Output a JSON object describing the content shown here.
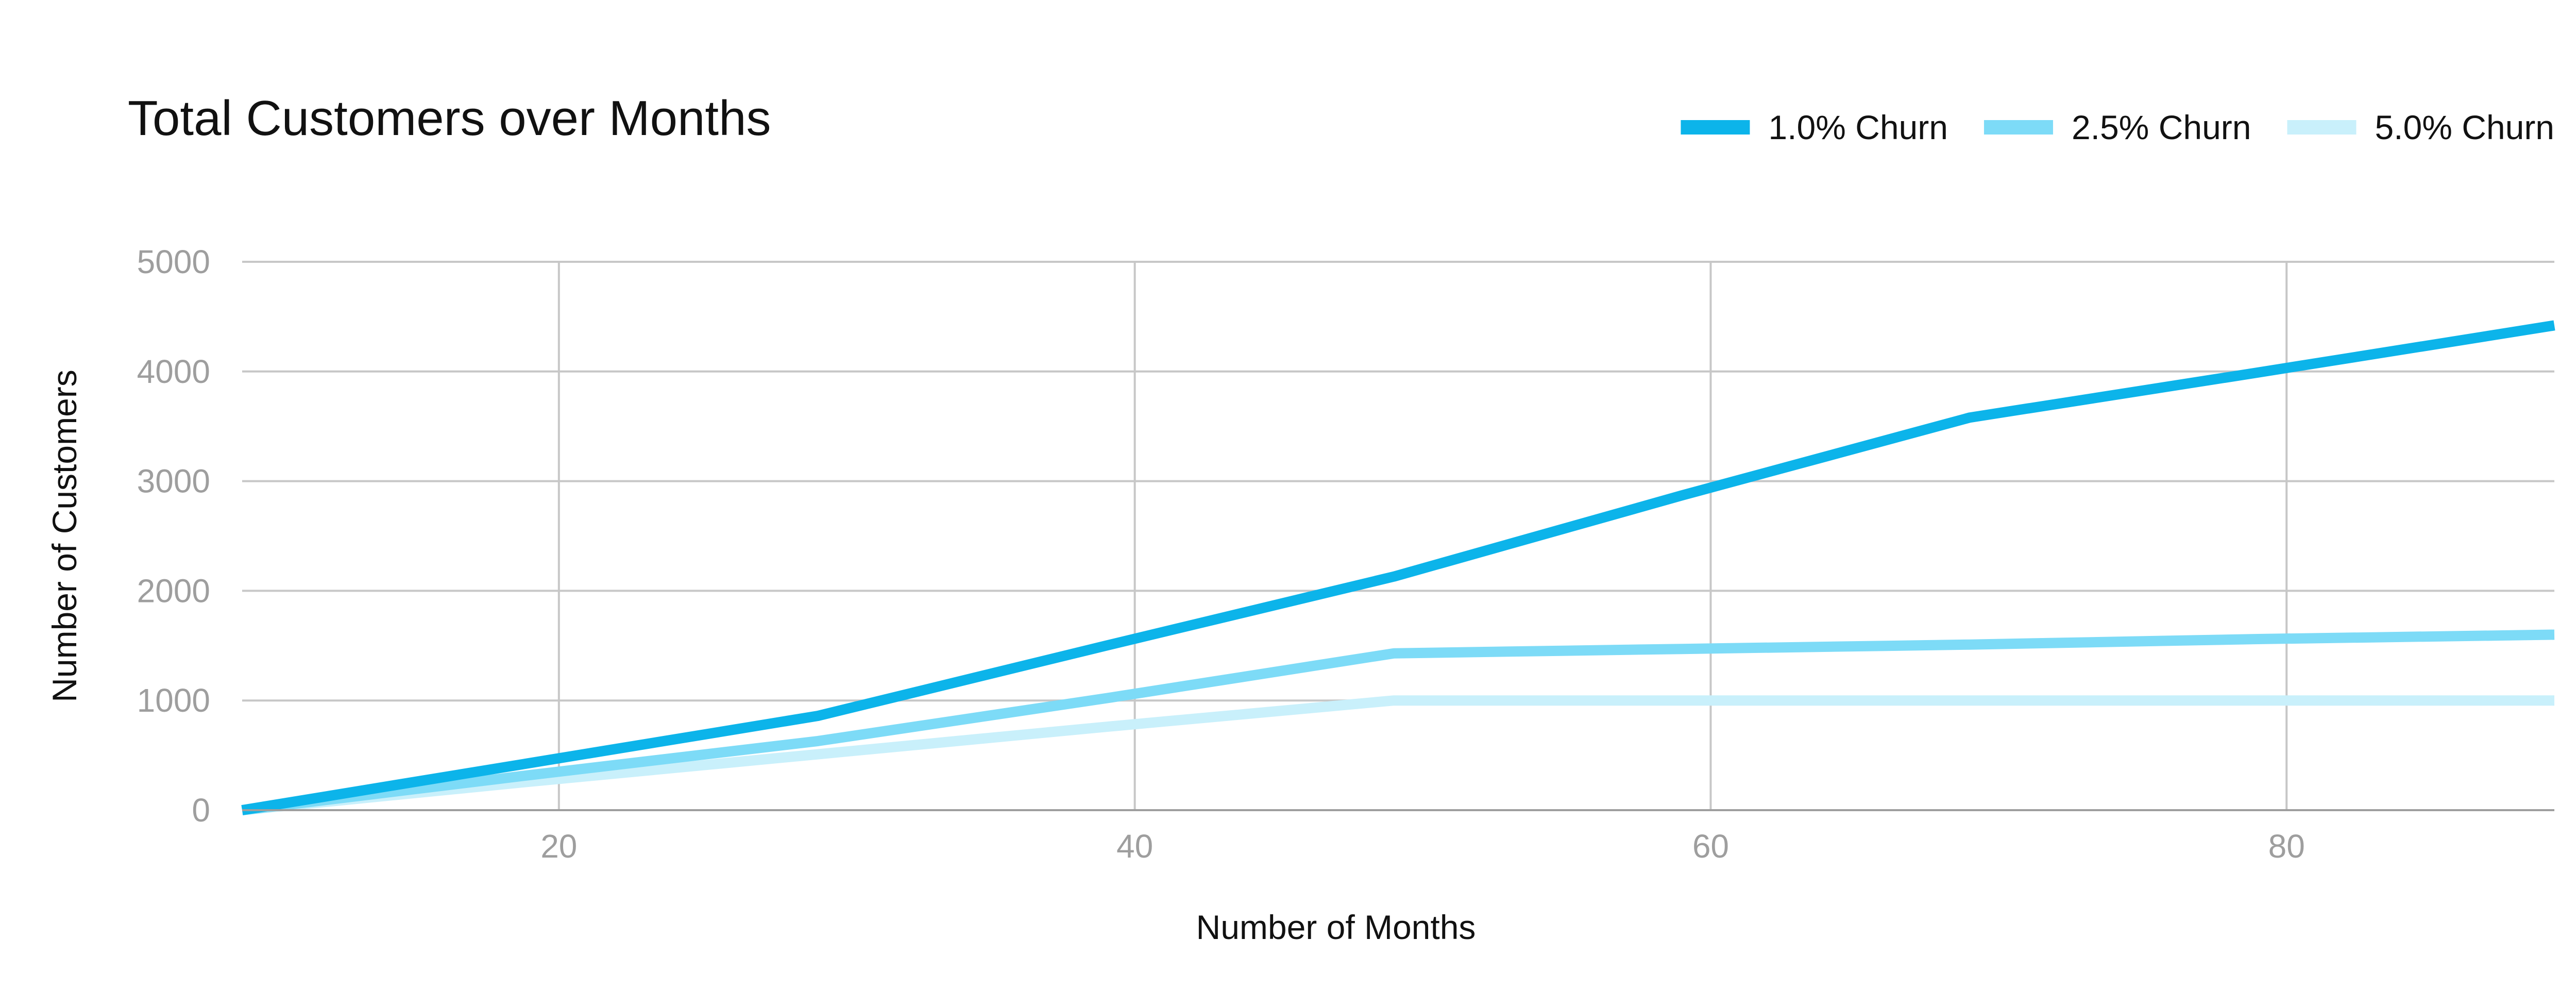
{
  "chart_data": {
    "type": "line",
    "title": "Total Customers over Months",
    "xlabel": "Number of Months",
    "ylabel": "Number of Customers",
    "xlim": [
      9,
      89.3
    ],
    "ylim": [
      0,
      5000
    ],
    "x_ticks": [
      20,
      40,
      60,
      80
    ],
    "y_ticks": [
      0,
      1000,
      2000,
      3000,
      4000,
      5000
    ],
    "grid": true,
    "legend_position": "top-right",
    "series": [
      {
        "name": "1.0% Churn",
        "color": "#0cb4ea",
        "x": [
          9,
          19,
          29,
          39,
          49,
          59,
          69,
          79,
          89.3
        ],
        "y": [
          0,
          430,
          860,
          1500,
          2130,
          2870,
          3580,
          3990,
          4420
        ]
      },
      {
        "name": "2.5% Churn",
        "color": "#7ddbf7",
        "x": [
          9,
          19,
          29,
          39,
          49,
          59,
          69,
          79,
          89.3
        ],
        "y": [
          0,
          320,
          630,
          1020,
          1430,
          1470,
          1510,
          1560,
          1600
        ]
      },
      {
        "name": "5.0% Churn",
        "color": "#c9f0fb",
        "x": [
          9,
          19,
          29,
          39,
          49,
          59,
          69,
          79,
          89.3
        ],
        "y": [
          0,
          260,
          510,
          760,
          1000,
          1000,
          1000,
          1000,
          1000
        ]
      }
    ]
  }
}
